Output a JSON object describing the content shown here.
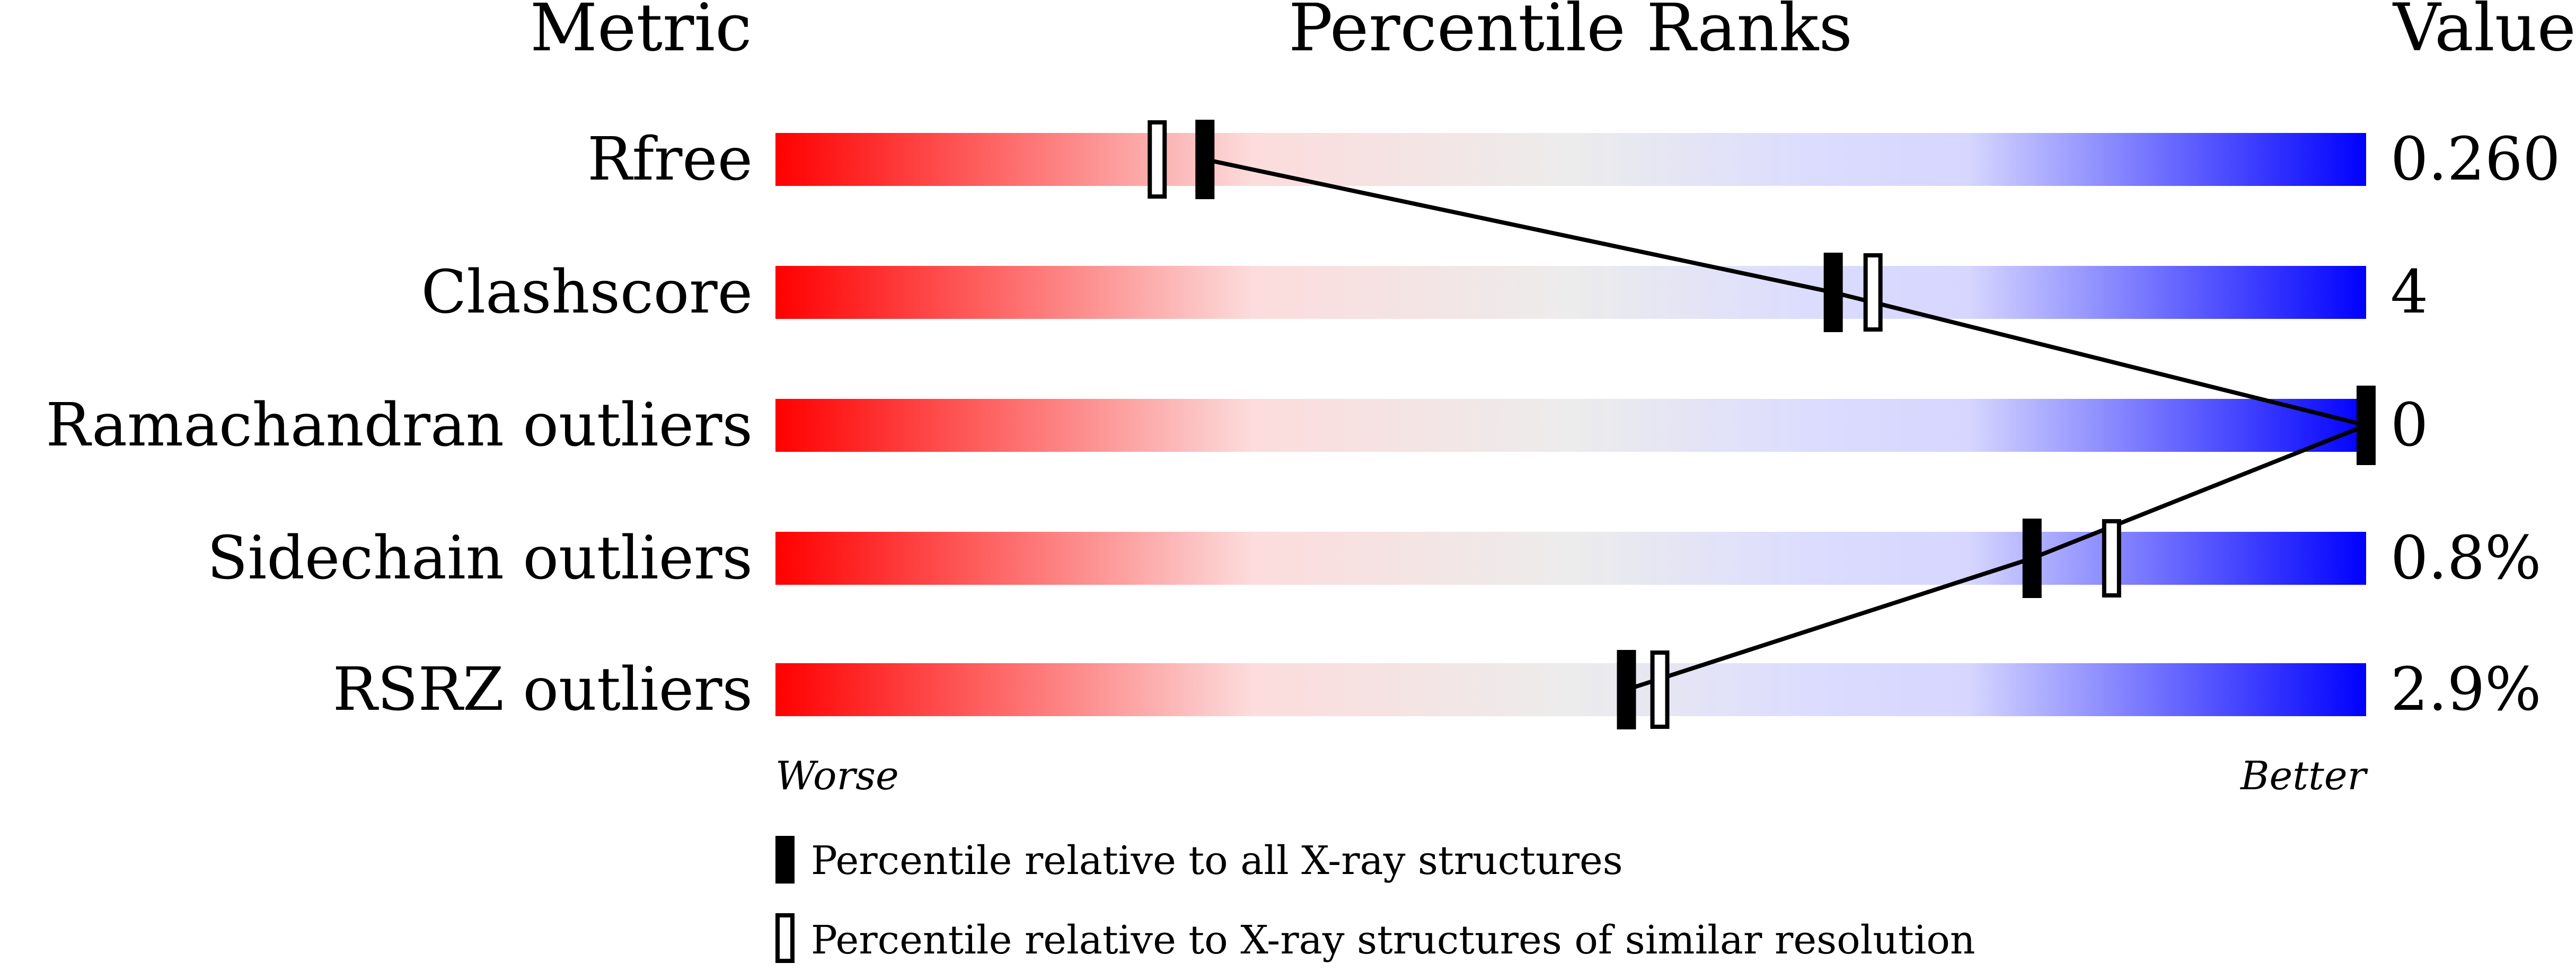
{
  "chart_data": {
    "type": "percentile-slider",
    "headers": {
      "metric": "Metric",
      "ranks": "Percentile Ranks",
      "value": "Value"
    },
    "axis": {
      "min": 0,
      "max": 100,
      "left_label": "Worse",
      "right_label": "Better"
    },
    "metrics": [
      {
        "name": "Rfree",
        "value": "0.260",
        "percentile_all": 27,
        "percentile_similar": 24
      },
      {
        "name": "Clashscore",
        "value": "4",
        "percentile_all": 66.5,
        "percentile_similar": 69
      },
      {
        "name": "Ramachandran outliers",
        "value": "0",
        "percentile_all": 100,
        "percentile_similar": null
      },
      {
        "name": "Sidechain outliers",
        "value": "0.8%",
        "percentile_all": 79,
        "percentile_similar": 84
      },
      {
        "name": "RSRZ outliers",
        "value": "2.9%",
        "percentile_all": 53.5,
        "percentile_similar": 55.6
      }
    ],
    "legend": [
      {
        "marker": "filled",
        "label": "Percentile relative to all X-ray structures"
      },
      {
        "marker": "open",
        "label": "Percentile relative to X-ray structures of similar resolution"
      }
    ],
    "colors": {
      "worse": "#ff0000",
      "mid": "#eeeeee",
      "better": "#0000ff",
      "marker": "#000000"
    }
  }
}
